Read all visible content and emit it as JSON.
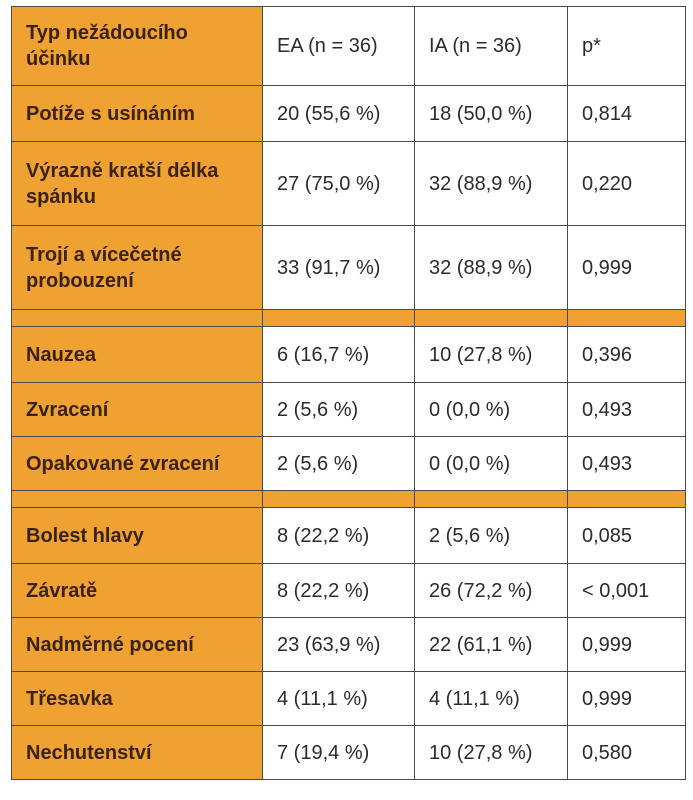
{
  "header": {
    "label": "Typ nežádoucího účinku",
    "col1": "EA (n = 36)",
    "col2": "IA (n = 36)",
    "col3": "p*"
  },
  "group1": [
    {
      "label": "Potíže s usínáním",
      "ea": "20 (55,6 %)",
      "ia": "18 (50,0 %)",
      "p": "0,814"
    },
    {
      "label": "Výrazně kratší délka spánku",
      "ea": "27 (75,0 %)",
      "ia": "32 (88,9 %)",
      "p": "0,220"
    },
    {
      "label": "Trojí a vícečetné probouzení",
      "ea": "33 (91,7 %)",
      "ia": "32 (88,9 %)",
      "p": "0,999"
    }
  ],
  "group2": [
    {
      "label": "Nauzea",
      "ea": "6 (16,7 %)",
      "ia": "10 (27,8 %)",
      "p": "0,396"
    },
    {
      "label": "Zvracení",
      "ea": "2 (5,6 %)",
      "ia": "0 (0,0 %)",
      "p": "0,493"
    },
    {
      "label": "Opakované zvracení",
      "ea": "2 (5,6 %)",
      "ia": "0 (0,0 %)",
      "p": "0,493"
    }
  ],
  "group3": [
    {
      "label": "Bolest hlavy",
      "ea": "8 (22,2 %)",
      "ia": "2 (5,6 %)",
      "p": "0,085"
    },
    {
      "label": "Závratě",
      "ea": "8 (22,2 %)",
      "ia": "26 (72,2 %)",
      "p": "< 0,001"
    },
    {
      "label": "Nadměrné pocení",
      "ea": "23 (63,9 %)",
      "ia": "22 (61,1 %)",
      "p": "0,999"
    },
    {
      "label": "Třesavka",
      "ea": "4 (11,1 %)",
      "ia": "4 (11,1 %)",
      "p": "0,999"
    },
    {
      "label": "Nechutenství",
      "ea": "7 (19,4 %)",
      "ia": "10 (27,8 %)",
      "p": "0,580"
    }
  ],
  "colors": {
    "label_bg": "#efa232",
    "border": "#4a4a4a",
    "cell_bg": "#ffffff"
  }
}
